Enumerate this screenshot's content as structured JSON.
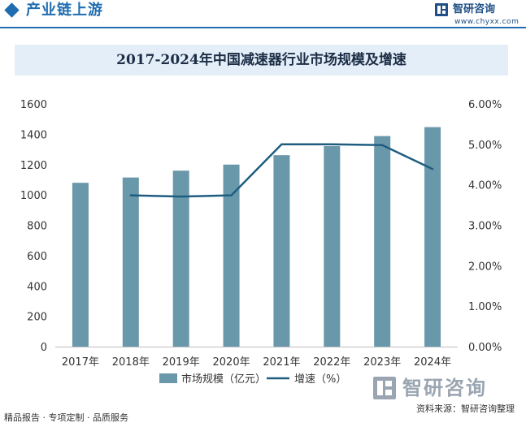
{
  "header": {
    "title": "产业链上游",
    "brand_name": "智研咨询",
    "brand_url": "www.chyxx.com"
  },
  "chart_title": "2017-2024年中国减速器行业市场规模及增速",
  "chart_data": {
    "type": "bar",
    "categories": [
      "2017年",
      "2018年",
      "2019年",
      "2020年",
      "2021年",
      "2022年",
      "2023年",
      "2024年"
    ],
    "series": [
      {
        "name": "市场规模（亿元）",
        "type": "bar",
        "axis": "left",
        "color": "#6a98ab",
        "values": [
          1080,
          1115,
          1160,
          1200,
          1262,
          1322,
          1388,
          1447
        ]
      },
      {
        "name": "增速（%）",
        "type": "line",
        "axis": "right",
        "color": "#1f5d80",
        "values": [
          null,
          3.74,
          3.71,
          3.74,
          5.0,
          5.0,
          4.98,
          4.39
        ]
      }
    ],
    "y_left": {
      "ylim": [
        0,
        1600
      ],
      "ticks": [
        0,
        200,
        400,
        600,
        800,
        1000,
        1200,
        1400,
        1600
      ],
      "tick_labels": [
        "0",
        "200",
        "400",
        "600",
        "800",
        "1000",
        "1200",
        "1400",
        "1600"
      ]
    },
    "y_right": {
      "ylim": [
        0,
        6
      ],
      "ticks": [
        0,
        1,
        2,
        3,
        4,
        5,
        6
      ],
      "tick_labels": [
        "0.00%",
        "1.00%",
        "2.00%",
        "3.00%",
        "4.00%",
        "5.00%",
        "6.00%"
      ]
    },
    "grid": false,
    "legend": "bottom"
  },
  "watermark": {
    "text": "智研咨询"
  },
  "footer": {
    "left": "精品报告 · 专项定制 · 品质服务",
    "right": "资料来源：智研咨询整理"
  },
  "colors": {
    "brand_blue": "#1f6cb0",
    "bar": "#6a98ab",
    "line": "#1f5d80",
    "title_bg": "#e4eef8"
  }
}
